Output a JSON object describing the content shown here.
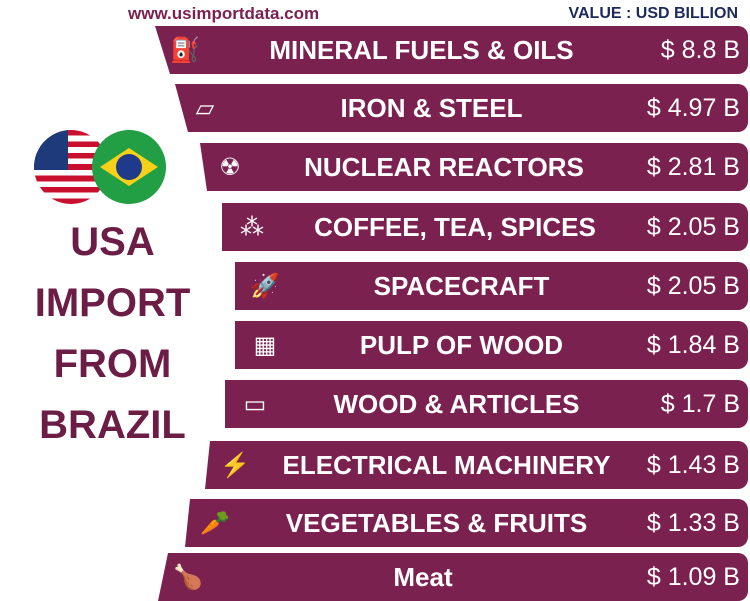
{
  "header": {
    "website": "www.usimportdata.com",
    "unit": "VALUE : USD BILLION"
  },
  "title": {
    "lines": [
      "USA",
      "IMPORT",
      "FROM",
      "BRAZIL"
    ]
  },
  "colors": {
    "bar": "#7b2150",
    "title": "#6b1d45",
    "unit": "#1d2b5a"
  },
  "chart_data": {
    "type": "bar",
    "categories": [
      "MINERAL FUELS & OILS",
      "IRON & STEEL",
      "NUCLEAR REACTORS",
      "COFFEE, TEA, SPICES",
      "SPACECRAFT",
      "PULP OF WOOD",
      "WOOD & ARTICLES",
      "ELECTRICAL MACHINERY",
      "VEGETABLES & FRUITS",
      "Meat"
    ],
    "values": [
      8.8,
      4.97,
      2.81,
      2.05,
      2.05,
      1.84,
      1.7,
      1.43,
      1.33,
      1.09
    ],
    "value_labels": [
      "$ 8.8 B",
      "$ 4.97 B",
      "$ 2.81 B",
      "$ 2.05 B",
      "$ 2.05 B",
      "$ 1.84 B",
      "$ 1.7 B",
      "$ 1.43 B",
      "$ 1.33 B",
      "$ 1.09 B"
    ],
    "icons": [
      "fuel-pump-icon",
      "steel-beams-icon",
      "radiation-icon",
      "coffee-beans-icon",
      "space-shuttle-icon",
      "wood-pulp-icon",
      "log-icon",
      "lightning-icon",
      "vegetables-icon",
      "meat-icon"
    ],
    "unit": "USD Billion"
  }
}
